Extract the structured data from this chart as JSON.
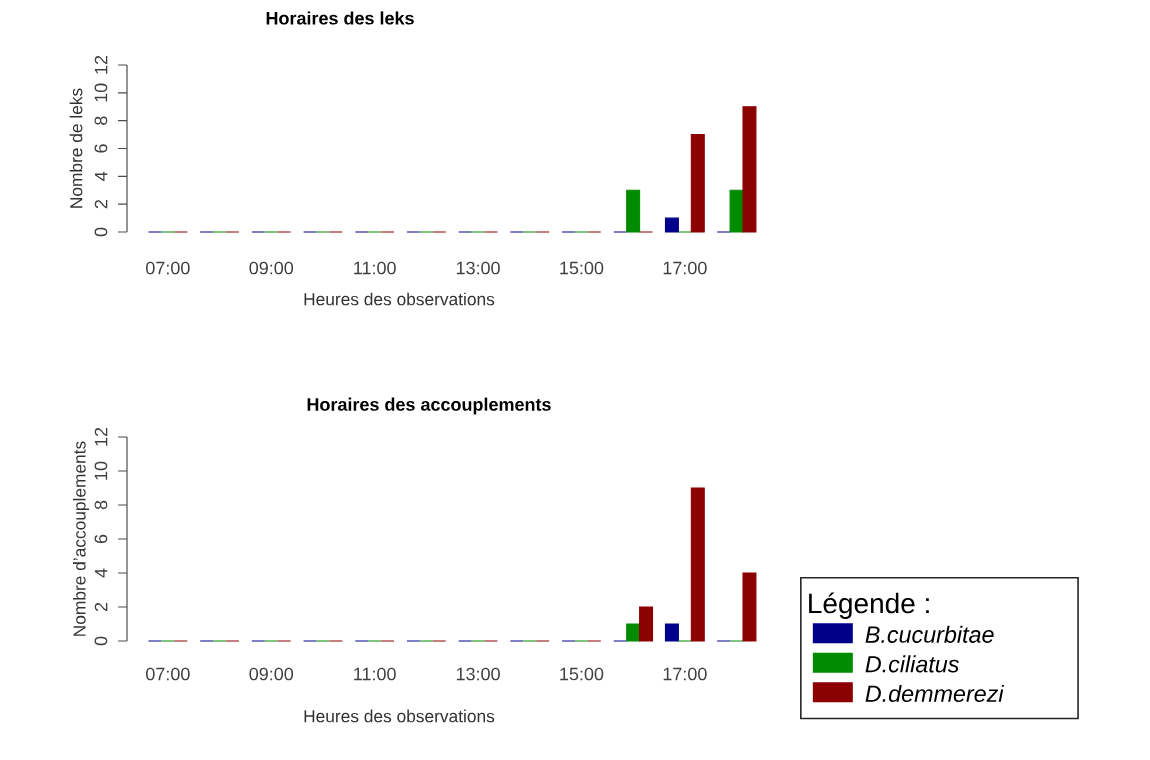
{
  "chart_data": [
    {
      "type": "bar",
      "title": "Horaires des leks",
      "xlabel": "Heures des observations",
      "ylabel": "Nombre de leks",
      "categories": [
        "07:00",
        null,
        "09:00",
        null,
        "11:00",
        null,
        "13:00",
        null,
        "15:00",
        null,
        "17:00",
        null
      ],
      "series": [
        {
          "color": "#00008b",
          "values": [
            0,
            0,
            0,
            0,
            0,
            0,
            0,
            0,
            0,
            0,
            1,
            0
          ]
        },
        {
          "color": "#008b00",
          "values": [
            0,
            0,
            0,
            0,
            0,
            0,
            0,
            0,
            0,
            3,
            0,
            3
          ]
        },
        {
          "color": "#8b0000",
          "values": [
            0,
            0,
            0,
            0,
            0,
            0,
            0,
            0,
            0,
            0,
            7,
            9
          ]
        }
      ],
      "ylim": [
        0,
        12
      ],
      "yticks": [
        0,
        2,
        4,
        6,
        8,
        10,
        12
      ]
    },
    {
      "type": "bar",
      "title": "Horaires des accouplements",
      "xlabel": "Heures des observations",
      "ylabel": "Nombre d’accouplements",
      "categories": [
        "07:00",
        null,
        "09:00",
        null,
        "11:00",
        null,
        "13:00",
        null,
        "15:00",
        null,
        "17:00",
        null
      ],
      "series": [
        {
          "name": "B.cucurbitae",
          "color": "#00008b",
          "values": [
            0,
            0,
            0,
            0,
            0,
            0,
            0,
            0,
            0,
            0,
            1,
            0
          ]
        },
        {
          "name": "D.ciliatus",
          "color": "#008b00",
          "values": [
            0,
            0,
            0,
            0,
            0,
            0,
            0,
            0,
            0,
            1,
            0,
            0
          ]
        },
        {
          "name": "D.demmerezi",
          "color": "#8b0000",
          "values": [
            0,
            0,
            0,
            0,
            0,
            0,
            0,
            0,
            0,
            2,
            9,
            4
          ]
        }
      ],
      "ylim": [
        0,
        12
      ],
      "yticks": [
        0,
        2,
        4,
        6,
        8,
        10,
        12
      ],
      "legend": "bottom right",
      "legend_title": "Légende :"
    }
  ]
}
